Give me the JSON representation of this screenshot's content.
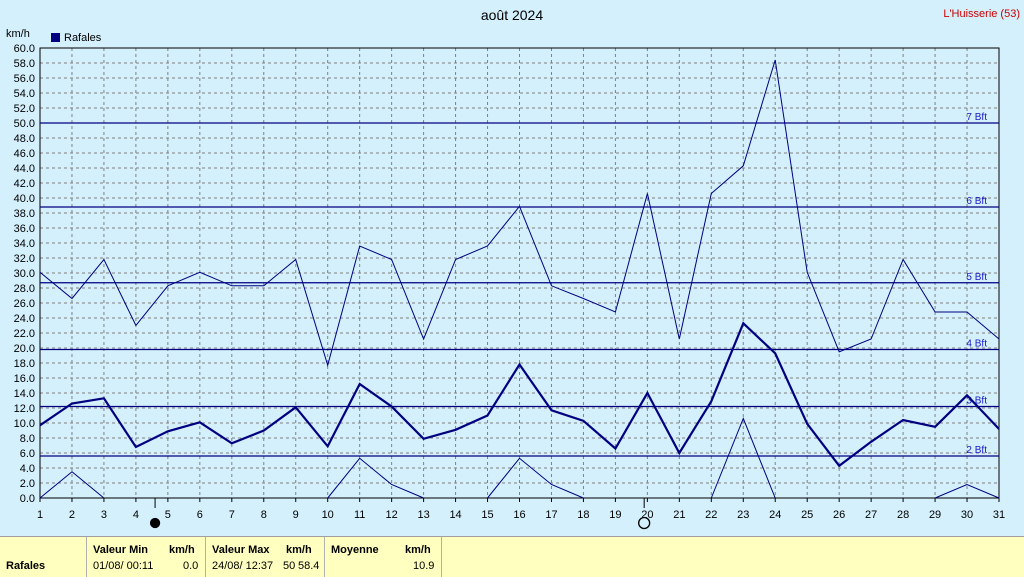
{
  "chart_data": {
    "type": "line",
    "title": "août 2024",
    "station": "L'Huisserie (53)",
    "ylabel": "km/h",
    "ylim": [
      0,
      60
    ],
    "ytick_step": 2,
    "x": [
      1,
      2,
      3,
      4,
      5,
      6,
      7,
      8,
      9,
      10,
      11,
      12,
      13,
      14,
      15,
      16,
      17,
      18,
      19,
      20,
      21,
      22,
      23,
      24,
      25,
      26,
      27,
      28,
      29,
      30,
      31
    ],
    "legend": [
      {
        "label": "Rafales",
        "color": "#000080"
      }
    ],
    "series": [
      {
        "name": "Rafales",
        "role": "mean",
        "color": "#000080",
        "values": [
          9.7,
          12.6,
          13.3,
          6.8,
          8.9,
          10.1,
          7.3,
          9.0,
          12.1,
          6.9,
          15.2,
          12.2,
          7.9,
          9.1,
          11.0,
          17.8,
          11.7,
          10.3,
          6.6,
          14.0,
          6.0,
          12.9,
          23.3,
          19.3,
          9.9,
          4.3,
          7.5,
          10.4,
          9.5,
          13.7,
          9.2
        ]
      },
      {
        "name": "max",
        "role": "upper",
        "color": "#000080",
        "values": [
          30.1,
          26.6,
          31.8,
          23.0,
          28.3,
          30.1,
          28.3,
          28.3,
          31.8,
          17.7,
          33.6,
          31.8,
          21.2,
          31.8,
          33.6,
          38.9,
          28.3,
          26.6,
          24.8,
          40.6,
          21.2,
          40.6,
          44.3,
          58.4,
          30.1,
          19.5,
          21.2,
          31.8,
          24.8,
          24.8,
          21.2
        ]
      },
      {
        "name": "min",
        "role": "lower",
        "color": "#000080",
        "values": [
          0.0,
          3.5,
          0.0,
          null,
          null,
          null,
          null,
          null,
          null,
          0.0,
          5.3,
          1.8,
          0.0,
          null,
          0.0,
          5.3,
          1.8,
          0.0,
          null,
          null,
          null,
          0.0,
          10.6,
          0.0,
          null,
          null,
          null,
          null,
          0.0,
          1.8,
          0.0
        ]
      }
    ],
    "beaufort_lines": [
      {
        "label": "2 Bft",
        "value": 5.6
      },
      {
        "label": "3 Bft",
        "value": 12.2
      },
      {
        "label": "4 Bft",
        "value": 19.8
      },
      {
        "label": "5 Bft",
        "value": 28.7
      },
      {
        "label": "6 Bft",
        "value": 38.8
      },
      {
        "label": "7 Bft",
        "value": 50.0
      }
    ],
    "moon_phases": [
      {
        "phase": "new",
        "day": 4.6
      },
      {
        "phase": "full",
        "day": 19.9
      }
    ],
    "grid": true,
    "background_color": "#d4f0fc",
    "grid_color": "#808080",
    "line_color": "#000080",
    "label_color": "#1a1ac8",
    "station_color": "#cc0000"
  },
  "footer": {
    "row_label": "Rafales",
    "min_header": "Valeur Min",
    "min_unit": "km/h",
    "min_date": "01/08/  00:11",
    "min_value": "0.0",
    "max_header": "Valeur Max",
    "max_unit": "km/h",
    "max_date": "24/08/  12:37",
    "max_value": "58.4",
    "max_code": "50",
    "avg_header": "Moyenne",
    "avg_unit": "km/h",
    "avg_value": "10.9"
  }
}
